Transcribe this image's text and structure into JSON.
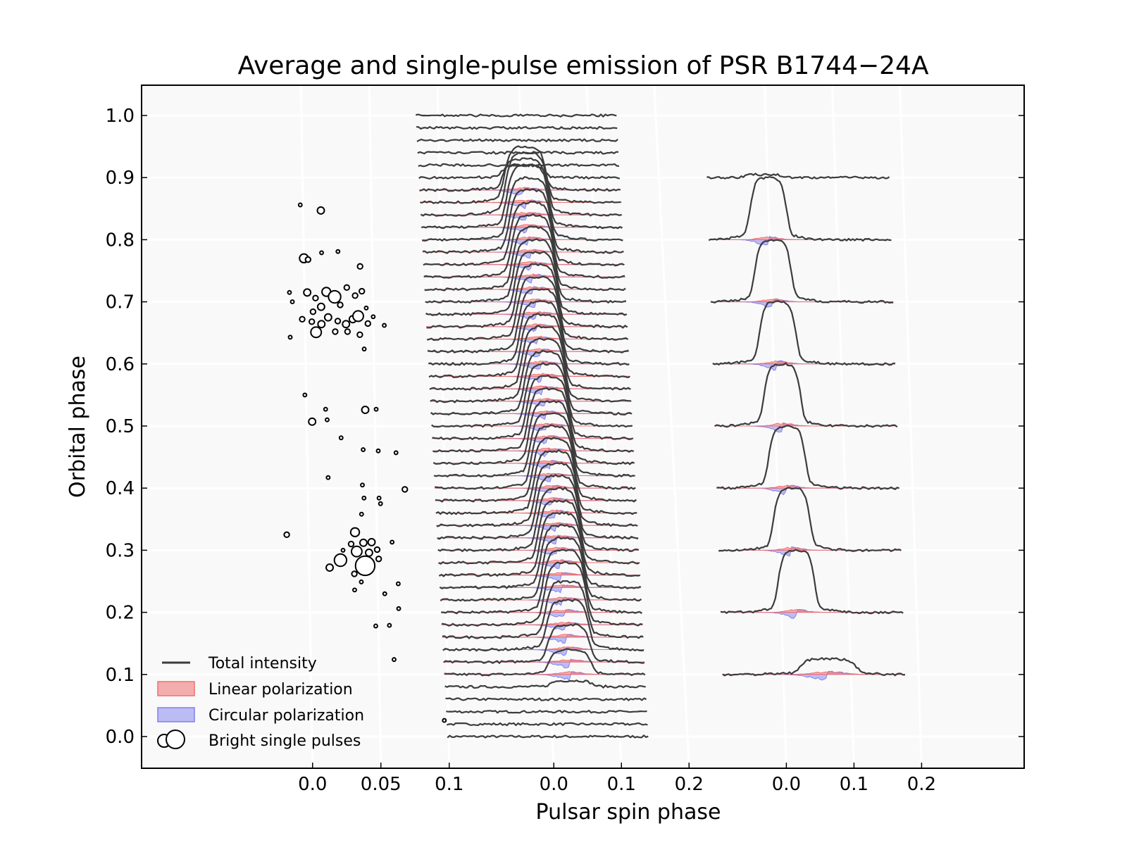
{
  "chart_data": {
    "type": "line",
    "title": "Average and single-pulse emission of PSR B1744−24A",
    "xlabel": "Pulsar spin phase",
    "ylabel": "Orbital phase",
    "ylim": [
      -0.05,
      1.05
    ],
    "yticks": [
      "0.0",
      "0.1",
      "0.2",
      "0.3",
      "0.4",
      "0.5",
      "0.6",
      "0.7",
      "0.8",
      "0.9",
      "1.0"
    ],
    "grid": true,
    "legend_position": "lower-left",
    "colors": {
      "total_intensity": "#3c3c3c",
      "linear": "#f07070",
      "circular": "#8080f0",
      "background": "#f9f9f9",
      "grid": "#ffffff"
    },
    "legend": [
      {
        "label": "Total intensity",
        "kind": "line"
      },
      {
        "label": "Linear polarization",
        "kind": "patch-red"
      },
      {
        "label": "Circular polarization",
        "kind": "patch-blue"
      },
      {
        "label": "Bright single pulses",
        "kind": "circles"
      }
    ],
    "panels": [
      {
        "name": "bright single pulses",
        "xticks": [
          "0.0",
          "0.05",
          "0.1"
        ],
        "points": [
          {
            "x": -0.002,
            "y": 0.856,
            "s": 1
          },
          {
            "x": 0.013,
            "y": 0.847,
            "s": 3
          },
          {
            "x": 0.0,
            "y": 0.77,
            "s": 4
          },
          {
            "x": 0.003,
            "y": 0.768,
            "s": 2
          },
          {
            "x": 0.013,
            "y": 0.779,
            "s": 1
          },
          {
            "x": 0.025,
            "y": 0.781,
            "s": 1
          },
          {
            "x": 0.041,
            "y": 0.757,
            "s": 2
          },
          {
            "x": -0.011,
            "y": 0.715,
            "s": 1
          },
          {
            "x": -0.009,
            "y": 0.7,
            "s": 1
          },
          {
            "x": 0.002,
            "y": 0.715,
            "s": 3
          },
          {
            "x": 0.008,
            "y": 0.706,
            "s": 2
          },
          {
            "x": 0.016,
            "y": 0.716,
            "s": 4
          },
          {
            "x": 0.022,
            "y": 0.708,
            "s": 6
          },
          {
            "x": 0.031,
            "y": 0.723,
            "s": 2
          },
          {
            "x": 0.037,
            "y": 0.71,
            "s": 2
          },
          {
            "x": 0.042,
            "y": 0.717,
            "s": 2
          },
          {
            "x": 0.026,
            "y": 0.695,
            "s": 2
          },
          {
            "x": 0.012,
            "y": 0.692,
            "s": 3
          },
          {
            "x": 0.006,
            "y": 0.684,
            "s": 2
          },
          {
            "x": 0.045,
            "y": 0.69,
            "s": 1
          },
          {
            "x": 0.05,
            "y": 0.676,
            "s": 1
          },
          {
            "x": -0.002,
            "y": 0.672,
            "s": 2
          },
          {
            "x": 0.005,
            "y": 0.668,
            "s": 2
          },
          {
            "x": 0.012,
            "y": 0.664,
            "s": 3
          },
          {
            "x": 0.017,
            "y": 0.675,
            "s": 3
          },
          {
            "x": 0.024,
            "y": 0.669,
            "s": 2
          },
          {
            "x": 0.03,
            "y": 0.664,
            "s": 3
          },
          {
            "x": 0.035,
            "y": 0.672,
            "s": 3
          },
          {
            "x": 0.039,
            "y": 0.677,
            "s": 5
          },
          {
            "x": 0.046,
            "y": 0.665,
            "s": 2
          },
          {
            "x": 0.008,
            "y": 0.651,
            "s": 5
          },
          {
            "x": 0.022,
            "y": 0.652,
            "s": 2
          },
          {
            "x": 0.031,
            "y": 0.652,
            "s": 2
          },
          {
            "x": 0.04,
            "y": 0.647,
            "s": 2
          },
          {
            "x": 0.058,
            "y": 0.662,
            "s": 1
          },
          {
            "x": -0.011,
            "y": 0.643,
            "s": 1
          },
          {
            "x": 0.043,
            "y": 0.624,
            "s": 1
          },
          {
            "x": -0.001,
            "y": 0.55,
            "s": 1
          },
          {
            "x": 0.014,
            "y": 0.527,
            "s": 1
          },
          {
            "x": 0.043,
            "y": 0.526,
            "s": 3
          },
          {
            "x": 0.051,
            "y": 0.527,
            "s": 1
          },
          {
            "x": 0.004,
            "y": 0.507,
            "s": 3
          },
          {
            "x": 0.015,
            "y": 0.51,
            "s": 1
          },
          {
            "x": 0.025,
            "y": 0.481,
            "s": 1
          },
          {
            "x": 0.041,
            "y": 0.462,
            "s": 1
          },
          {
            "x": 0.052,
            "y": 0.46,
            "s": 1
          },
          {
            "x": 0.065,
            "y": 0.457,
            "s": 1
          },
          {
            "x": 0.015,
            "y": 0.417,
            "s": 1
          },
          {
            "x": 0.04,
            "y": 0.405,
            "s": 1
          },
          {
            "x": 0.071,
            "y": 0.398,
            "s": 2
          },
          {
            "x": 0.041,
            "y": 0.384,
            "s": 1
          },
          {
            "x": 0.052,
            "y": 0.384,
            "s": 1
          },
          {
            "x": 0.053,
            "y": 0.375,
            "s": 1
          },
          {
            "x": 0.039,
            "y": 0.358,
            "s": 1
          },
          {
            "x": -0.016,
            "y": 0.325,
            "s": 2
          },
          {
            "x": 0.034,
            "y": 0.329,
            "s": 4
          },
          {
            "x": 0.04,
            "y": 0.312,
            "s": 3
          },
          {
            "x": 0.046,
            "y": 0.313,
            "s": 3
          },
          {
            "x": 0.031,
            "y": 0.31,
            "s": 2
          },
          {
            "x": 0.061,
            "y": 0.313,
            "s": 1
          },
          {
            "x": 0.025,
            "y": 0.3,
            "s": 1
          },
          {
            "x": 0.035,
            "y": 0.298,
            "s": 5
          },
          {
            "x": 0.044,
            "y": 0.296,
            "s": 3
          },
          {
            "x": 0.05,
            "y": 0.301,
            "s": 2
          },
          {
            "x": 0.023,
            "y": 0.284,
            "s": 6
          },
          {
            "x": 0.041,
            "y": 0.275,
            "s": 10
          },
          {
            "x": 0.051,
            "y": 0.286,
            "s": 2
          },
          {
            "x": 0.015,
            "y": 0.272,
            "s": 3
          },
          {
            "x": 0.033,
            "y": 0.262,
            "s": 2
          },
          {
            "x": 0.038,
            "y": 0.249,
            "s": 1
          },
          {
            "x": 0.065,
            "y": 0.246,
            "s": 1
          },
          {
            "x": 0.033,
            "y": 0.236,
            "s": 1
          },
          {
            "x": 0.055,
            "y": 0.23,
            "s": 1
          },
          {
            "x": 0.065,
            "y": 0.206,
            "s": 1
          },
          {
            "x": 0.048,
            "y": 0.178,
            "s": 1
          },
          {
            "x": 0.058,
            "y": 0.179,
            "s": 1
          },
          {
            "x": 0.061,
            "y": 0.124,
            "s": 1
          },
          {
            "x": 0.097,
            "y": 0.026,
            "s": 1
          }
        ]
      },
      {
        "name": "average profiles versus orbital phase",
        "xticks": [
          "0.0",
          "0.1",
          "0.2"
        ],
        "profiles": [
          {
            "y": 0.0,
            "amp": 0.0
          },
          {
            "y": 0.02,
            "amp": 0.0
          },
          {
            "y": 0.04,
            "amp": 0.0
          },
          {
            "y": 0.06,
            "amp": 0.0
          },
          {
            "y": 0.08,
            "amp": 0.01
          },
          {
            "y": 0.1,
            "amp": 0.04
          },
          {
            "y": 0.12,
            "amp": 0.06
          },
          {
            "y": 0.14,
            "amp": 0.08
          },
          {
            "y": 0.16,
            "amp": 0.09
          },
          {
            "y": 0.18,
            "amp": 0.1
          },
          {
            "y": 0.2,
            "amp": 0.1
          },
          {
            "y": 0.22,
            "amp": 0.1
          },
          {
            "y": 0.24,
            "amp": 0.1
          },
          {
            "y": 0.26,
            "amp": 0.1
          },
          {
            "y": 0.28,
            "amp": 0.1
          },
          {
            "y": 0.3,
            "amp": 0.1
          },
          {
            "y": 0.32,
            "amp": 0.1
          },
          {
            "y": 0.34,
            "amp": 0.1
          },
          {
            "y": 0.36,
            "amp": 0.1
          },
          {
            "y": 0.38,
            "amp": 0.1
          },
          {
            "y": 0.4,
            "amp": 0.1
          },
          {
            "y": 0.42,
            "amp": 0.1
          },
          {
            "y": 0.44,
            "amp": 0.1
          },
          {
            "y": 0.46,
            "amp": 0.1
          },
          {
            "y": 0.48,
            "amp": 0.1
          },
          {
            "y": 0.5,
            "amp": 0.1
          },
          {
            "y": 0.52,
            "amp": 0.1
          },
          {
            "y": 0.54,
            "amp": 0.1
          },
          {
            "y": 0.56,
            "amp": 0.1
          },
          {
            "y": 0.58,
            "amp": 0.1
          },
          {
            "y": 0.6,
            "amp": 0.1
          },
          {
            "y": 0.62,
            "amp": 0.1
          },
          {
            "y": 0.64,
            "amp": 0.1
          },
          {
            "y": 0.66,
            "amp": 0.1
          },
          {
            "y": 0.68,
            "amp": 0.1
          },
          {
            "y": 0.7,
            "amp": 0.1
          },
          {
            "y": 0.72,
            "amp": 0.1
          },
          {
            "y": 0.74,
            "amp": 0.1
          },
          {
            "y": 0.76,
            "amp": 0.1
          },
          {
            "y": 0.78,
            "amp": 0.1
          },
          {
            "y": 0.8,
            "amp": 0.1
          },
          {
            "y": 0.82,
            "amp": 0.1
          },
          {
            "y": 0.84,
            "amp": 0.1
          },
          {
            "y": 0.86,
            "amp": 0.09
          },
          {
            "y": 0.88,
            "amp": 0.05
          },
          {
            "y": 0.9,
            "amp": 0.02
          },
          {
            "y": 0.92,
            "amp": 0.0
          },
          {
            "y": 0.94,
            "amp": 0.0
          },
          {
            "y": 0.96,
            "amp": 0.0
          },
          {
            "y": 0.98,
            "amp": 0.0
          },
          {
            "y": 1.0,
            "amp": 0.0
          }
        ]
      },
      {
        "name": "average profiles, coarse orbital binning",
        "xticks": [
          "0.0",
          "0.1",
          "0.2"
        ],
        "profiles": [
          {
            "y": 0.1,
            "amp": 0.025
          },
          {
            "y": 0.2,
            "amp": 0.1
          },
          {
            "y": 0.3,
            "amp": 0.1
          },
          {
            "y": 0.4,
            "amp": 0.1
          },
          {
            "y": 0.5,
            "amp": 0.1
          },
          {
            "y": 0.6,
            "amp": 0.1
          },
          {
            "y": 0.7,
            "amp": 0.1
          },
          {
            "y": 0.8,
            "amp": 0.1
          },
          {
            "y": 0.9,
            "amp": 0.005
          }
        ]
      }
    ]
  }
}
